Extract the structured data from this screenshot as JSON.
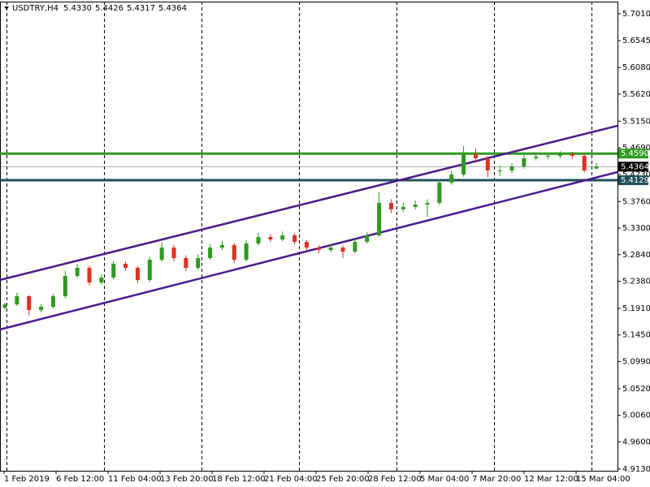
{
  "chart_data": {
    "type": "candlestick",
    "header": {
      "symbol": "USDTRY,H4",
      "open": "5.4330",
      "high": "5.4426",
      "low": "5.4317",
      "close": "5.4364"
    },
    "x_labels": [
      "1 Feb 2019",
      "6 Feb 12:00",
      "11 Feb 04:00",
      "13 Feb 20:00",
      "18 Feb 12:00",
      "21 Feb 04:00",
      "25 Feb 20:00",
      "28 Feb 12:00",
      "5 Mar 04:00",
      "7 Mar 20:00",
      "12 Mar 12:00",
      "15 Mar 04:00"
    ],
    "ylim": [
      4.91,
      5.722
    ],
    "yticks": [
      {
        "value": 5.701,
        "label": "5.7010"
      },
      {
        "value": 5.6545,
        "label": "5.6545"
      },
      {
        "value": 5.608,
        "label": "5.6080"
      },
      {
        "value": 5.562,
        "label": "5.5620"
      },
      {
        "value": 5.515,
        "label": "5.5150"
      },
      {
        "value": 5.469,
        "label": "5.4690"
      },
      {
        "value": 5.423,
        "label": "5.4230"
      },
      {
        "value": 5.376,
        "label": "5.3760"
      },
      {
        "value": 5.33,
        "label": "5.3300"
      },
      {
        "value": 5.284,
        "label": "5.2840"
      },
      {
        "value": 5.238,
        "label": "5.2380"
      },
      {
        "value": 5.191,
        "label": "5.1910"
      },
      {
        "value": 5.145,
        "label": "5.1450"
      },
      {
        "value": 5.099,
        "label": "5.0990"
      },
      {
        "value": 5.052,
        "label": "5.0520"
      },
      {
        "value": 5.006,
        "label": "5.0060"
      },
      {
        "value": 4.96,
        "label": "4.9600"
      },
      {
        "value": 4.913,
        "label": "4.9130"
      }
    ],
    "up_color": "#2e9a1e",
    "down_color": "#e0301e",
    "open": [
      5.192,
      5.198,
      5.2121,
      5.1882,
      5.1938,
      5.2121,
      5.2472,
      5.2612,
      5.2359,
      5.2444,
      5.2683,
      5.2612,
      5.2402,
      5.2753,
      5.2963,
      5.2781,
      5.2612,
      5.2781,
      5.2963,
      5.3006,
      5.2753,
      5.3034,
      5.3146,
      5.3104,
      5.3174,
      5.3062,
      5.2963,
      5.2921,
      5.2963,
      5.2893,
      5.3062,
      5.3174,
      5.3736,
      5.3624,
      5.3666,
      5.3708,
      5.3736,
      5.4087,
      5.4228,
      5.4579,
      5.4509,
      5.4298,
      5.4298,
      5.4368,
      5.4509,
      5.4537,
      5.4551,
      5.4579,
      5.4551,
      5.433
    ],
    "high": [
      5.201,
      5.218,
      5.214,
      5.199,
      5.216,
      5.256,
      5.268,
      5.265,
      5.25,
      5.274,
      5.272,
      5.264,
      5.28,
      5.306,
      5.301,
      5.283,
      5.285,
      5.302,
      5.308,
      5.304,
      5.309,
      5.322,
      5.32,
      5.324,
      5.321,
      5.31,
      5.301,
      5.302,
      5.3,
      5.311,
      5.323,
      5.392,
      5.38,
      5.374,
      5.378,
      5.38,
      5.415,
      5.429,
      5.472,
      5.468,
      5.455,
      5.438,
      5.442,
      5.456,
      5.46,
      5.461,
      5.463,
      5.462,
      5.459,
      5.4426
    ],
    "low": [
      5.189,
      5.195,
      5.179,
      5.184,
      5.191,
      5.209,
      5.243,
      5.231,
      5.232,
      5.241,
      5.256,
      5.235,
      5.237,
      5.272,
      5.273,
      5.256,
      5.258,
      5.275,
      5.292,
      5.27,
      5.272,
      5.3,
      5.306,
      5.307,
      5.302,
      5.29,
      5.286,
      5.288,
      5.278,
      5.286,
      5.303,
      5.315,
      5.356,
      5.358,
      5.362,
      5.35,
      5.37,
      5.405,
      5.419,
      5.443,
      5.418,
      5.42,
      5.425,
      5.433,
      5.447,
      5.449,
      5.451,
      5.45,
      5.426,
      5.4317
    ],
    "close": [
      5.198,
      5.2121,
      5.1882,
      5.1938,
      5.2121,
      5.2472,
      5.2612,
      5.2359,
      5.2444,
      5.2683,
      5.2612,
      5.2402,
      5.2753,
      5.2963,
      5.2781,
      5.2612,
      5.2781,
      5.2963,
      5.3006,
      5.2753,
      5.3034,
      5.3146,
      5.3104,
      5.3174,
      5.3062,
      5.2963,
      5.2921,
      5.2963,
      5.2893,
      5.3062,
      5.3174,
      5.3736,
      5.3624,
      5.3666,
      5.3708,
      5.3736,
      5.4087,
      5.4228,
      5.4579,
      5.4509,
      5.4298,
      5.4298,
      5.4368,
      5.4509,
      5.4537,
      5.4551,
      5.4579,
      5.4551,
      5.4298,
      5.4364
    ],
    "trend_lines": [
      {
        "start": 5.2402,
        "end": 5.5071,
        "color": "#4b1a8c"
      },
      {
        "start": 5.1545,
        "end": 5.427,
        "color": "#4b1a8c"
      }
    ],
    "levels": [
      {
        "value": 5.459,
        "label": "5.4590",
        "color": "#2e9a1e",
        "width": 3
      },
      {
        "value": 5.4364,
        "label": "5.4364",
        "color": "#000000",
        "width": 0.5
      },
      {
        "value": 5.4129,
        "label": "5.4129",
        "color": "#1f4f5a",
        "width": 3
      }
    ]
  }
}
